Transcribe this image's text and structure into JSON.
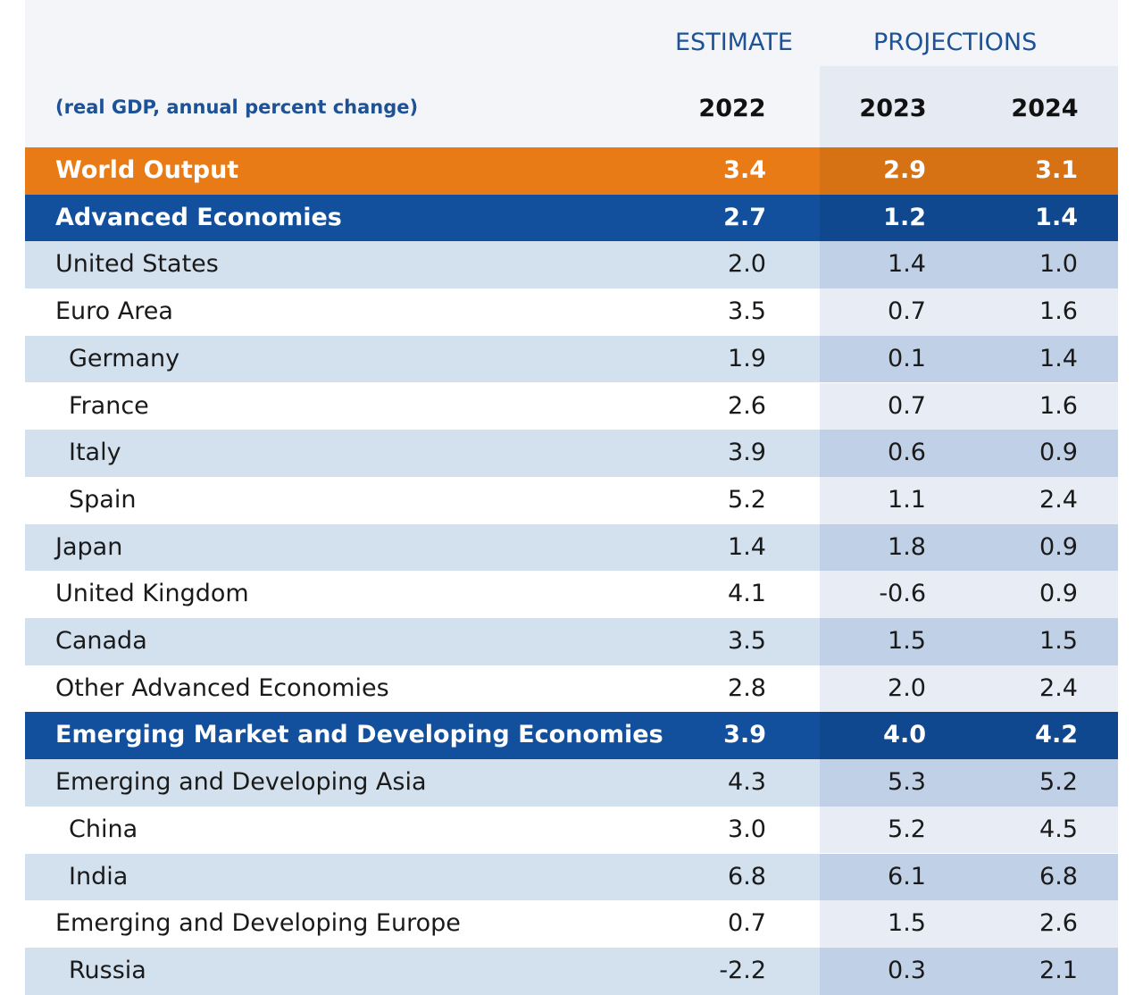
{
  "header": {
    "estimate": "ESTIMATE",
    "projections": "PROJECTIONS",
    "subtitle": "(real GDP, annual percent change)",
    "years": [
      "2022",
      "2023",
      "2024"
    ]
  },
  "table": {
    "rows": [
      {
        "label": "World Output",
        "values": [
          "3.4",
          "2.9",
          "3.1"
        ],
        "fill": "#e97b16",
        "emphasis": true,
        "level": 0
      },
      {
        "label": "Advanced Economies",
        "values": [
          "2.7",
          "1.2",
          "1.4"
        ],
        "fill": "#124f9c",
        "emphasis": true,
        "level": 0
      },
      {
        "label": "United States",
        "values": [
          "2.0",
          "1.4",
          "1.0"
        ],
        "fill": "#d3e1ef",
        "emphasis": false,
        "level": 0
      },
      {
        "label": "Euro Area",
        "values": [
          "3.5",
          "0.7",
          "1.6"
        ],
        "fill": "#ffffff",
        "emphasis": false,
        "level": 0
      },
      {
        "label": "Germany",
        "values": [
          "1.9",
          "0.1",
          "1.4"
        ],
        "fill": "#d3e1ef",
        "emphasis": false,
        "level": 1
      },
      {
        "label": "France",
        "values": [
          "2.6",
          "0.7",
          "1.6"
        ],
        "fill": "#ffffff",
        "emphasis": false,
        "level": 1
      },
      {
        "label": "Italy",
        "values": [
          "3.9",
          "0.6",
          "0.9"
        ],
        "fill": "#d3e1ef",
        "emphasis": false,
        "level": 1
      },
      {
        "label": "Spain",
        "values": [
          "5.2",
          "1.1",
          "2.4"
        ],
        "fill": "#ffffff",
        "emphasis": false,
        "level": 1
      },
      {
        "label": "Japan",
        "values": [
          "1.4",
          "1.8",
          "0.9"
        ],
        "fill": "#d3e1ef",
        "emphasis": false,
        "level": 0
      },
      {
        "label": "United Kingdom",
        "values": [
          "4.1",
          "-0.6",
          "0.9"
        ],
        "fill": "#ffffff",
        "emphasis": false,
        "level": 0
      },
      {
        "label": "Canada",
        "values": [
          "3.5",
          "1.5",
          "1.5"
        ],
        "fill": "#d3e1ef",
        "emphasis": false,
        "level": 0
      },
      {
        "label": "Other Advanced Economies",
        "values": [
          "2.8",
          "2.0",
          "2.4"
        ],
        "fill": "#ffffff",
        "emphasis": false,
        "level": 0
      },
      {
        "label": "Emerging Market and Developing Economies",
        "values": [
          "3.9",
          "4.0",
          "4.2"
        ],
        "fill": "#124f9c",
        "emphasis": true,
        "level": 0
      },
      {
        "label": "Emerging and Developing Asia",
        "values": [
          "4.3",
          "5.3",
          "5.2"
        ],
        "fill": "#d3e1ef",
        "emphasis": false,
        "level": 0
      },
      {
        "label": "China",
        "values": [
          "3.0",
          "5.2",
          "4.5"
        ],
        "fill": "#ffffff",
        "emphasis": false,
        "level": 1
      },
      {
        "label": "India",
        "values": [
          "6.8",
          "6.1",
          "6.8"
        ],
        "fill": "#d3e1ef",
        "emphasis": false,
        "level": 1
      },
      {
        "label": "Emerging and Developing Europe",
        "values": [
          "0.7",
          "1.5",
          "2.6"
        ],
        "fill": "#ffffff",
        "emphasis": false,
        "level": 0
      },
      {
        "label": "Russia",
        "values": [
          "-2.2",
          "0.3",
          "2.1"
        ],
        "fill": "#d3e1ef",
        "emphasis": false,
        "level": 1
      }
    ]
  }
}
